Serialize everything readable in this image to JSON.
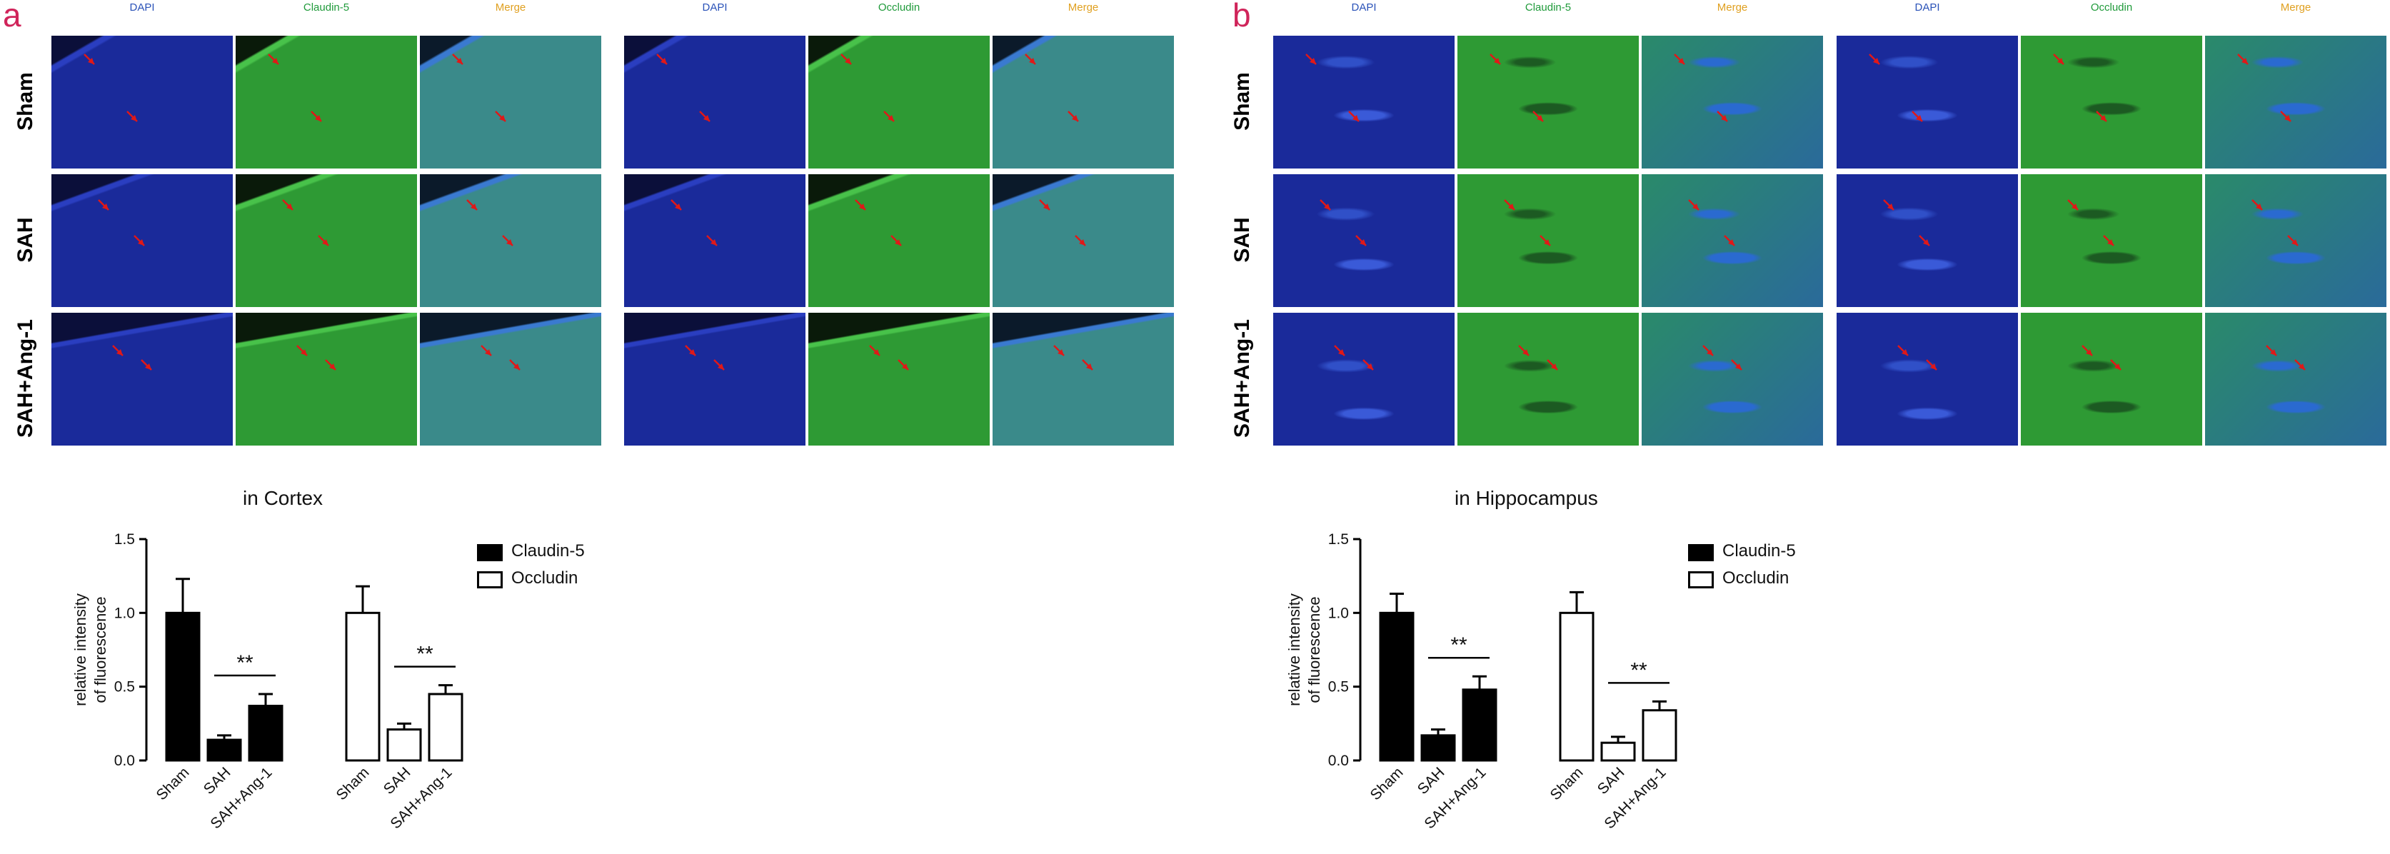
{
  "figure": {
    "panel_a": {
      "letter": "a",
      "region": "in Cortex"
    },
    "panel_b": {
      "letter": "b",
      "region": "in Hippocampus"
    },
    "channels_left": [
      "DAPI",
      "Claudin-5",
      "Merge"
    ],
    "channels_right": [
      "DAPI",
      "Occludin",
      "Merge"
    ],
    "rows": [
      "Sham",
      "SAH",
      "SAH+Ang-1"
    ],
    "colors": {
      "dapi": "#1a2a9a",
      "green": "#2e9a34",
      "merge": "#2a7a86",
      "label_dapi": "#2a52b8",
      "label_green": "#1f9a3a",
      "label_merge": "#e0a020",
      "arrow": "#e01818",
      "panel_letter": "#d0245a"
    }
  },
  "chart_data": [
    {
      "type": "bar",
      "title": "in Cortex",
      "ylabel": "relative intensity of fluorescence",
      "ylabel_lines": [
        "relative intensity",
        "of fluorescence"
      ],
      "ylim": [
        0,
        1.5
      ],
      "yticks": [
        "0.0",
        "0.5",
        "1.0",
        "1.5"
      ],
      "categories": [
        "Sham",
        "SAH",
        "SAH+Ang-1"
      ],
      "series": [
        {
          "name": "Claudin-5",
          "fill": "#000000",
          "values": [
            1.0,
            0.14,
            0.37
          ],
          "errors": [
            0.23,
            0.03,
            0.08
          ]
        },
        {
          "name": "Occludin",
          "fill": "#ffffff",
          "values": [
            1.0,
            0.21,
            0.45
          ],
          "errors": [
            0.18,
            0.04,
            0.06
          ]
        }
      ],
      "significance": [
        "**",
        "**"
      ]
    },
    {
      "type": "bar",
      "title": "in Hippocampus",
      "ylabel": "relative intensity of fluorescence",
      "ylabel_lines": [
        "relative intensity",
        "of fluorescence"
      ],
      "ylim": [
        0,
        1.5
      ],
      "yticks": [
        "0.0",
        "0.5",
        "1.0",
        "1.5"
      ],
      "categories": [
        "Sham",
        "SAH",
        "SAH+Ang-1"
      ],
      "series": [
        {
          "name": "Claudin-5",
          "fill": "#000000",
          "values": [
            1.0,
            0.17,
            0.48
          ],
          "errors": [
            0.13,
            0.04,
            0.09
          ]
        },
        {
          "name": "Occludin",
          "fill": "#ffffff",
          "values": [
            1.0,
            0.12,
            0.34
          ],
          "errors": [
            0.14,
            0.04,
            0.06
          ]
        }
      ],
      "significance": [
        "**",
        "**"
      ]
    }
  ]
}
